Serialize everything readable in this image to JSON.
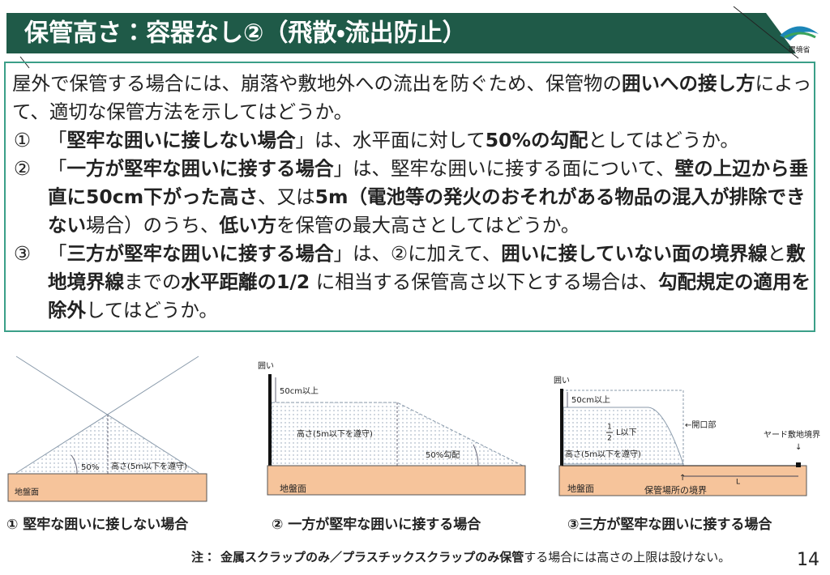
{
  "header": {
    "title": "保管高さ：容器なし②（飛散・流出防止）",
    "logo_label": "環境省"
  },
  "body": {
    "intro": [
      {
        "text": "屋外で保管する場合には、崩落や敷地外への流出を防ぐため、保管物の"
      },
      {
        "text": "囲いへの接し方",
        "bold": true
      },
      {
        "text": "によって、適切な保管方法を示してはどうか。"
      }
    ],
    "items": [
      {
        "marker": "①",
        "segments": [
          {
            "text": "「"
          },
          {
            "text": "堅牢な囲いに接しない場合",
            "bold": true
          },
          {
            "text": "」は、水平面に対して"
          },
          {
            "text": "50%の勾配",
            "bold": true
          },
          {
            "text": "としてはどうか。"
          }
        ]
      },
      {
        "marker": "②",
        "segments": [
          {
            "text": "「"
          },
          {
            "text": "一方が堅牢な囲いに接する場合",
            "bold": true
          },
          {
            "text": "」は、堅牢な囲いに接する面について、"
          },
          {
            "text": "壁の上辺から垂直に50cm下がった高さ",
            "bold": true
          },
          {
            "text": "、又は"
          },
          {
            "text": "5m（電池等の発火のおそれがある物品の混入が排除できない",
            "bold": true
          },
          {
            "text": "場合）のうち、"
          },
          {
            "text": "低い方",
            "bold": true
          },
          {
            "text": "を保管の最大高さとしてはどうか。"
          }
        ]
      },
      {
        "marker": "③",
        "segments": [
          {
            "text": "「"
          },
          {
            "text": "三方が堅牢な囲いに接する場合",
            "bold": true
          },
          {
            "text": "」は、②に加えて、"
          },
          {
            "text": "囲いに接していない面の境界線",
            "bold": true
          },
          {
            "text": "と"
          },
          {
            "text": "敷地境界線",
            "bold": true
          },
          {
            "text": "までの"
          },
          {
            "text": "水平距離の1/2",
            "bold": true
          },
          {
            "text": " に相当する保管高さ以下とする場合は、"
          },
          {
            "text": "勾配規定の適用を除外",
            "bold": true
          },
          {
            "text": "してはどうか。"
          }
        ]
      }
    ]
  },
  "figures": [
    {
      "caption": "① 堅牢な囲いに接しない場合",
      "ground": "地盤面",
      "slope": "50%",
      "height": "高さ(5m以下を遵守)"
    },
    {
      "caption": "② 一方が堅牢な囲いに接する場合",
      "wall": "囲い",
      "margin": "50cm以上",
      "height": "高さ(5m以下を遵守)",
      "slope": "50%勾配",
      "ground": "地盤面"
    },
    {
      "caption": "③三方が堅牢な囲いに接する場合",
      "wall": "囲い",
      "margin": "50cm以上",
      "fraction_numerator": "1",
      "fraction_denominator": "2",
      "fraction_rest": "L以下",
      "height": "高さ(5m以下を遵守)",
      "opening": "←開口部",
      "yard_boundary": "ヤード敷地境界",
      "down_arrow": "↓",
      "distance": "L",
      "up_arrow": "↑",
      "storage_boundary": "保管場所の境界",
      "ground": "地盤面"
    }
  ],
  "footer": {
    "note_label": "注：",
    "note_bold": "金属スクラップのみ／プラスチックスクラップのみ保管",
    "note_rest": "する場合には高さの上限は設けない。",
    "page_number": "14"
  }
}
